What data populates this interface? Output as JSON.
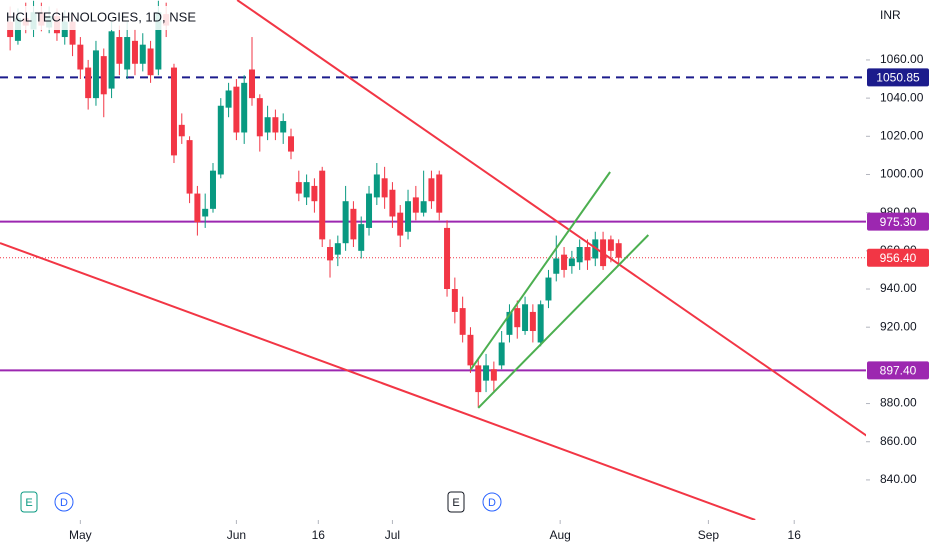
{
  "chart_data": {
    "type": "candlestick",
    "title": "HCL TECHNOLOGIES, 1D, NSE",
    "currency": "INR",
    "up_color": "#089981",
    "down_color": "#f23645",
    "x": [
      0,
      1,
      2,
      3,
      4,
      5,
      6,
      7,
      8,
      9,
      10,
      11,
      12,
      13,
      14,
      15,
      16,
      17,
      18,
      19,
      20,
      21,
      22,
      23,
      24,
      25,
      26,
      27,
      28,
      29,
      30,
      31,
      32,
      33,
      34,
      35,
      36,
      37,
      38,
      39,
      40,
      41,
      42,
      43,
      44,
      45,
      46,
      47,
      48,
      49,
      50,
      51,
      52,
      53,
      54,
      55,
      56,
      57,
      58,
      59,
      60,
      61,
      62,
      63,
      64,
      65,
      66,
      67,
      68,
      69,
      70,
      71,
      72,
      73,
      74,
      75,
      76,
      77,
      78
    ],
    "open": [
      1080,
      1070,
      1082,
      1076,
      1085,
      1077,
      1083,
      1072,
      1080,
      1068,
      1056,
      1040,
      1062,
      1045,
      1072,
      1055,
      1070,
      1058,
      1066,
      1055,
      1084,
      1056,
      1026,
      1018,
      990,
      978,
      982,
      1000,
      1035,
      1046,
      1022,
      1055,
      1040,
      1022,
      1030,
      1022,
      1020,
      996,
      988,
      994,
      1002,
      962,
      958,
      964,
      982,
      960,
      972,
      988,
      998,
      992,
      980,
      970,
      988,
      980,
      998,
      1000,
      972,
      940,
      930,
      916,
      900,
      892,
      898,
      900,
      916,
      930,
      918,
      928,
      912,
      934,
      948,
      958,
      952,
      954,
      962,
      956,
      966,
      966,
      964
    ],
    "high": [
      1088,
      1087,
      1090,
      1091,
      1090,
      1088,
      1087,
      1086,
      1084,
      1072,
      1060,
      1070,
      1066,
      1080,
      1078,
      1080,
      1076,
      1074,
      1070,
      1091,
      1090,
      1058,
      1032,
      1020,
      994,
      990,
      1006,
      1040,
      1048,
      1050,
      1052,
      1072,
      1042,
      1036,
      1034,
      1032,
      1024,
      1002,
      1000,
      998,
      1004,
      966,
      968,
      994,
      986,
      978,
      994,
      1006,
      1004,
      996,
      984,
      992,
      994,
      1002,
      1002,
      1002,
      976,
      946,
      936,
      920,
      904,
      906,
      902,
      918,
      932,
      934,
      936,
      932,
      934,
      950,
      968,
      962,
      960,
      966,
      966,
      970,
      970,
      968,
      966
    ],
    "low": [
      1065,
      1068,
      1074,
      1072,
      1075,
      1074,
      1070,
      1068,
      1062,
      1050,
      1034,
      1036,
      1030,
      1040,
      1052,
      1050,
      1052,
      1054,
      1048,
      1052,
      1072,
      1006,
      1016,
      985,
      968,
      972,
      980,
      998,
      1030,
      1018,
      1016,
      1036,
      1012,
      1018,
      1018,
      1016,
      1008,
      986,
      984,
      980,
      962,
      946,
      952,
      960,
      962,
      956,
      968,
      984,
      982,
      972,
      962,
      966,
      976,
      978,
      982,
      976,
      936,
      922,
      912,
      896,
      878,
      886,
      886,
      898,
      912,
      914,
      916,
      912,
      910,
      930,
      944,
      946,
      948,
      950,
      950,
      952,
      950,
      954,
      953
    ],
    "close": [
      1072,
      1082,
      1078,
      1085,
      1078,
      1083,
      1074,
      1080,
      1068,
      1055,
      1040,
      1065,
      1042,
      1075,
      1058,
      1072,
      1058,
      1068,
      1052,
      1085,
      1078,
      1010,
      1020,
      990,
      975,
      982,
      1002,
      1036,
      1044,
      1022,
      1048,
      1040,
      1020,
      1030,
      1022,
      1028,
      1012,
      990,
      996,
      986,
      966,
      955,
      964,
      986,
      966,
      974,
      990,
      1000,
      988,
      978,
      968,
      986,
      980,
      986,
      986,
      980,
      940,
      928,
      916,
      900,
      886,
      900,
      892,
      912,
      928,
      920,
      932,
      918,
      932,
      946,
      956,
      950,
      956,
      962,
      955,
      966,
      952,
      960,
      956.4
    ],
    "xlim": [
      -1.3,
      109.7
    ],
    "xticks": [
      {
        "value": 9,
        "label": "May"
      },
      {
        "value": 29,
        "label": "Jun"
      },
      {
        "value": 39.5,
        "label": "16"
      },
      {
        "value": 49,
        "label": "Jul"
      },
      {
        "value": 70.5,
        "label": "Aug"
      },
      {
        "value": 89.5,
        "label": "Sep"
      },
      {
        "value": 100.5,
        "label": "16"
      }
    ],
    "ylim": [
      819,
      1091.4
    ],
    "yticks": [
      {
        "value": 1060,
        "label": "1060.00"
      },
      {
        "value": 1040,
        "label": "1040.00"
      },
      {
        "value": 1020,
        "label": "1020.00"
      },
      {
        "value": 1000,
        "label": "1000.00"
      },
      {
        "value": 980,
        "label": "980.00"
      },
      {
        "value": 960,
        "label": "960.00"
      },
      {
        "value": 940,
        "label": "940.00"
      },
      {
        "value": 920,
        "label": "920.00"
      },
      {
        "value": 880,
        "label": "880.00"
      },
      {
        "value": 860,
        "label": "860.00"
      },
      {
        "value": 840,
        "label": "840.00"
      }
    ],
    "levels": [
      {
        "value": 1050.85,
        "label": "1050.85",
        "color": "#1c1c8c",
        "style": "dashed"
      },
      {
        "value": 975.3,
        "label": "975.30",
        "color": "#9c27b0",
        "style": "solid"
      },
      {
        "value": 897.4,
        "label": "897.40",
        "color": "#9c27b0",
        "style": "solid"
      }
    ],
    "last_price": {
      "value": 956.4,
      "label": "956.40",
      "color": "#f23645"
    },
    "trendlines": [
      {
        "color": "#f23645",
        "x": [
          29.1,
          110
        ],
        "y": [
          1091.4,
          862.5
        ]
      },
      {
        "color": "#f23645",
        "x": [
          -1.3,
          95.5
        ],
        "y": [
          964.1,
          819
        ]
      },
      {
        "color": "#4caf50",
        "x": [
          59,
          76.9
        ],
        "y": [
          897.6,
          1001.3
        ]
      },
      {
        "color": "#4caf50",
        "x": [
          60,
          81.8
        ],
        "y": [
          877.7,
          968.3
        ]
      }
    ],
    "events": [
      "E",
      "D",
      "E",
      "D"
    ]
  }
}
